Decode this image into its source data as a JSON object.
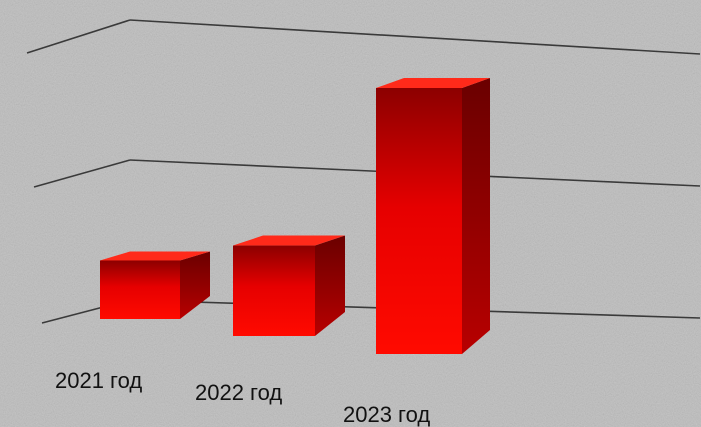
{
  "chart_data": {
    "type": "bar",
    "style": "3d-column",
    "categories": [
      "2021 год",
      "2022 год",
      "2023 год"
    ],
    "values": [
      22,
      34,
      100
    ],
    "ylim": [
      0,
      120
    ],
    "grid": true,
    "legend": "none",
    "title": "",
    "xlabel": "",
    "ylabel": ""
  },
  "colors": {
    "background": "#bdbdbd",
    "bar_front": "#e60000",
    "bar_front_dark": "#8c0000",
    "bar_side": "#a80000",
    "bar_top": "#ff2a1a",
    "gridline": "#3a3a3a"
  }
}
